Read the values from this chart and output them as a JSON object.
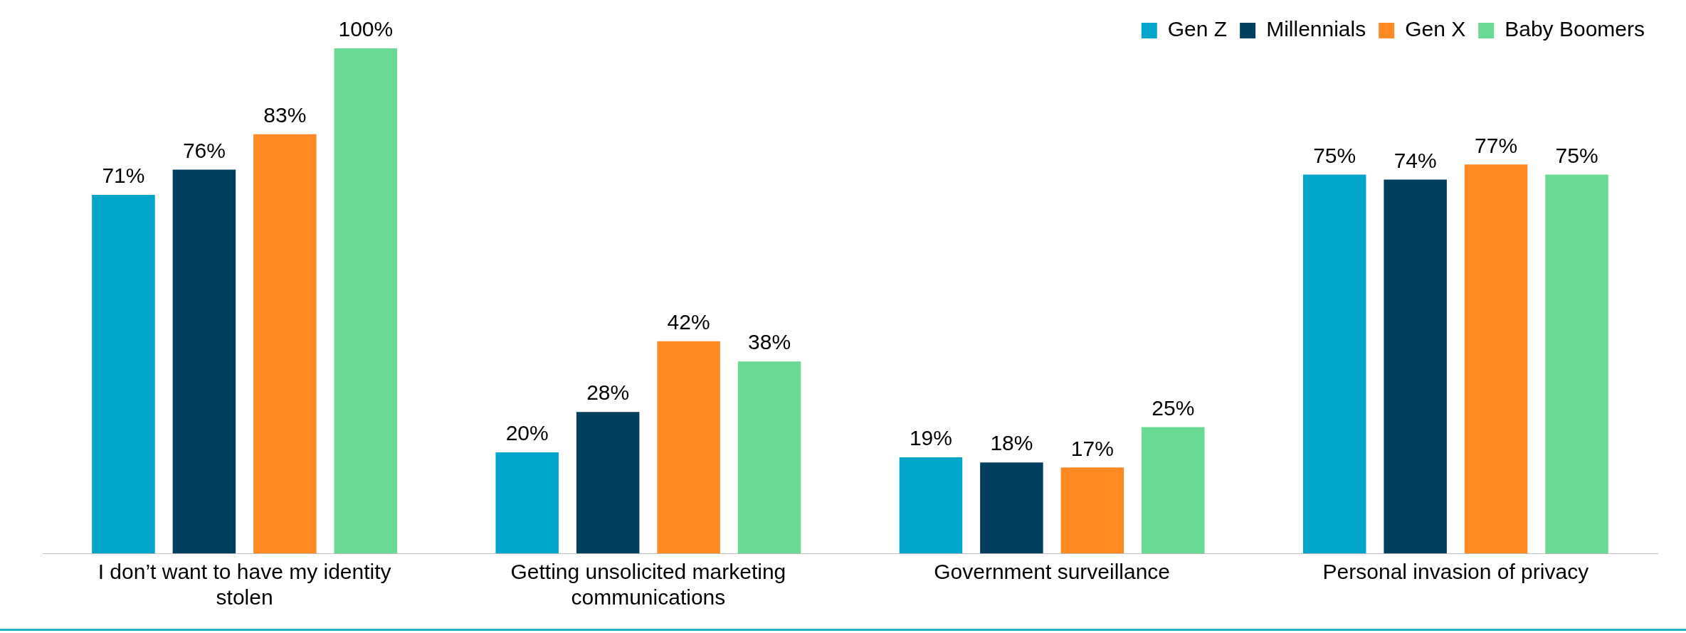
{
  "chart_data": {
    "type": "bar",
    "categories": [
      "I don’t want to have my identity stolen",
      "Getting unsolicited marketing communications",
      "Government surveillance",
      "Personal invasion of privacy"
    ],
    "series": [
      {
        "name": "Gen Z",
        "color": "#00a5c9",
        "values": [
          71,
          20,
          19,
          75
        ],
        "value_labels": [
          "71%",
          "20%",
          "19%",
          "75%"
        ]
      },
      {
        "name": "Millennials",
        "color": "#023f5e",
        "values": [
          76,
          28,
          18,
          74
        ],
        "value_labels": [
          "76%",
          "28%",
          "18%",
          "74%"
        ]
      },
      {
        "name": "Gen X",
        "color": "#ff8a23",
        "values": [
          83,
          42,
          17,
          77
        ],
        "value_labels": [
          "83%",
          "42%",
          "17%",
          "77%"
        ]
      },
      {
        "name": "Baby Boomers",
        "color": "#69d993",
        "values": [
          100,
          38,
          25,
          75
        ],
        "value_labels": [
          "100%",
          "38%",
          "25%",
          "75%"
        ]
      }
    ],
    "legend": "top right",
    "grid": false
  }
}
